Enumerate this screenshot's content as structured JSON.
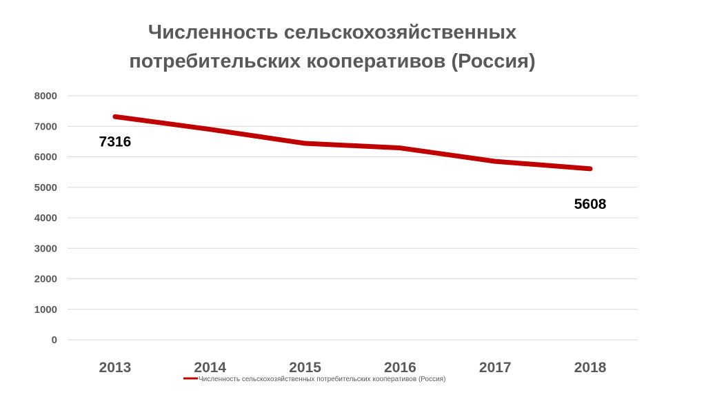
{
  "chart_data": {
    "type": "line",
    "title_lines": [
      "Численность сельскохозяйственных",
      "потребительских кооперативов (Россия)"
    ],
    "categories": [
      "2013",
      "2014",
      "2015",
      "2016",
      "2017",
      "2018"
    ],
    "series": [
      {
        "name": "Численность сельскохозяйственных потребительских кооперативов (Россия)",
        "values": [
          7316,
          6900,
          6440,
          6290,
          5850,
          5608
        ],
        "color": "#c00000"
      }
    ],
    "data_labels": [
      {
        "category": "2013",
        "text": "7316"
      },
      {
        "category": "2018",
        "text": "5608"
      }
    ],
    "ylim": [
      0,
      8000
    ],
    "yticks": [
      "0",
      "1000",
      "2000",
      "3000",
      "4000",
      "5000",
      "6000",
      "7000",
      "8000"
    ],
    "grid": true,
    "legend_position": "bottom",
    "colors": {
      "line": "#c00000",
      "text": "#595959",
      "grid": "#d9d9d9"
    }
  }
}
